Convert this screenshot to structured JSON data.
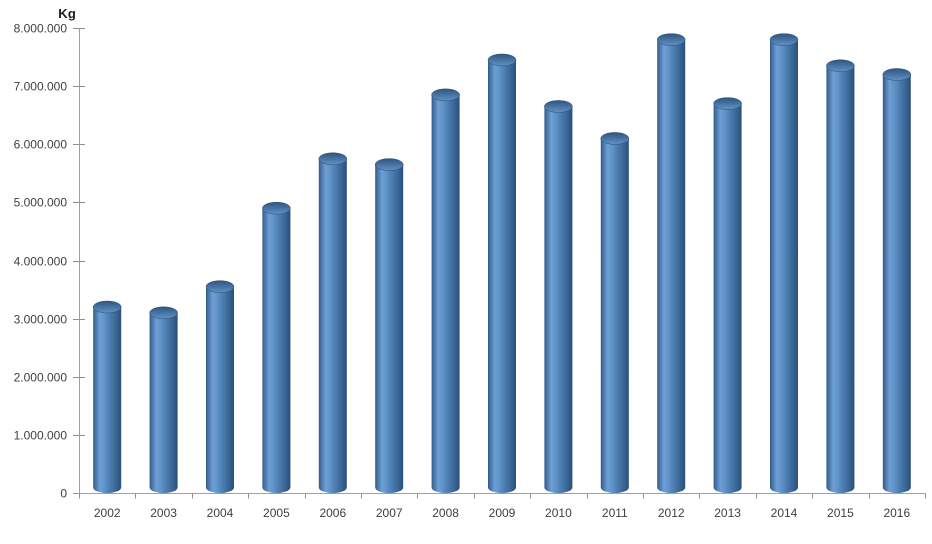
{
  "page": {
    "background": "#ffffff"
  },
  "chart_data": {
    "type": "bar",
    "bar_style": "cylinder",
    "title": "",
    "ylabel": "Kg",
    "xlabel": "",
    "categories": [
      "2002",
      "2003",
      "2004",
      "2005",
      "2006",
      "2007",
      "2008",
      "2009",
      "2010",
      "2011",
      "2012",
      "2013",
      "2014",
      "2015",
      "2016"
    ],
    "values": [
      3200000,
      3100000,
      3550000,
      4900000,
      5750000,
      5650000,
      6850000,
      7450000,
      6650000,
      6100000,
      7800000,
      6700000,
      7800000,
      7350000,
      7200000
    ],
    "ylim": [
      0,
      8000000
    ],
    "ytick_step": 1000000,
    "ytick_labels": [
      "0",
      "1.000.000",
      "2.000.000",
      "3.000.000",
      "4.000.000",
      "5.000.000",
      "6.000.000",
      "7.000.000",
      "8.000.000"
    ],
    "grid": false,
    "legend_position": "none",
    "colors": {
      "bar_edge_dark": "#2a4f7b",
      "bar_left_dark": "#2e5a88",
      "bar_highlight": "#6d9fd4",
      "bar_mid": "#4a7aad",
      "bar_top_rim": "#30557f",
      "bar_top_face": "#44709f",
      "bar_top_front": "#6091c4",
      "axis": "#a0a0a0",
      "tick": "#8f8f8f",
      "tick_label": "#3f3f3f"
    }
  }
}
